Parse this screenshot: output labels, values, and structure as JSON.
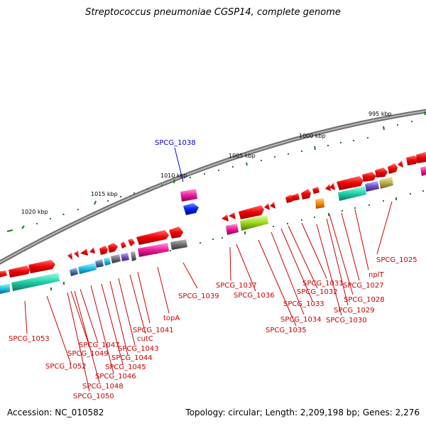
{
  "title": "Streptococcus pneumoniae CGSP14, complete genome",
  "accession": "Accession: NC_010582",
  "topology": "Topology: circular; Length: 2,209,198 bp; Genes: 2,276",
  "kbp_labels": [
    "995 kbp",
    "1000 kbp",
    "1005 kbp",
    "1010 kbp",
    "1015 kbp",
    "1020 kbp"
  ],
  "gene_labels": [
    "SPCG_1038",
    "SPCG_1025",
    "nplT",
    "SPCG_1027",
    "SPCG_1028",
    "SPCG_1029",
    "SPCG_1030",
    "SPCG_1031",
    "SPCG_1032",
    "SPCG_1033",
    "SPCG_1034",
    "SPCG_1035",
    "SPCG_1036",
    "SPCG_1037",
    "SPCG_1039",
    "topA",
    "SPCG_1041",
    "cutC",
    "SPCG_1043",
    "SPCG_1044",
    "SPCG_1045",
    "SPCG_1046",
    "SPCG_1047",
    "SPCG_1048",
    "SPCG_1049",
    "SPCG_1050",
    "SPCG_1052",
    "SPCG_1053"
  ],
  "colors": {
    "gene_label": "#cc0000",
    "highlight_label": "#0000cc",
    "backbone": "#888888",
    "tick": "#1f7a1f"
  }
}
